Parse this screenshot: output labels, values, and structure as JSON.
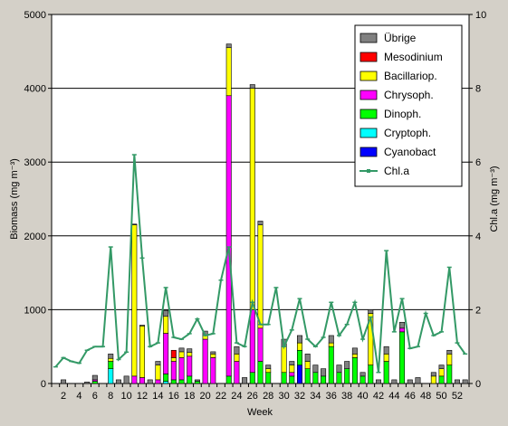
{
  "chart_data": {
    "type": "bar",
    "subtype": "stacked-bar-with-line",
    "xlabel": "Week",
    "ylabel_left": "Biomass (mg m⁻³)",
    "ylabel_right": "Chl.a (mg m⁻³)",
    "ylim_left": [
      0,
      5000
    ],
    "ylim_right": [
      0,
      10
    ],
    "yticks_left": [
      "0",
      "1000",
      "2000",
      "3000",
      "4000",
      "5000"
    ],
    "yticks_right": [
      "0",
      "2",
      "4",
      "6",
      "8",
      "10"
    ],
    "xticks": [
      "2",
      "4",
      "6",
      "8",
      "10",
      "12",
      "14",
      "16",
      "18",
      "20",
      "22",
      "24",
      "26",
      "28",
      "30",
      "32",
      "34",
      "36",
      "38",
      "40",
      "42",
      "44",
      "46",
      "48",
      "50",
      "52"
    ],
    "x_range": [
      1,
      53
    ],
    "grid": "horizontal",
    "legend_position": "top-right",
    "colors": {
      "Übrige": "#808080",
      "Mesodinium": "#ff0000",
      "Bacillariop.": "#ffff00",
      "Chrysoph.": "#ff00ff",
      "Dinoph.": "#00ff00",
      "Cryptoph.": "#00ffff",
      "Cyanobact": "#0000ff",
      "Chl.a": "#339966",
      "background": "#ffffff",
      "frame": "#d4d0c8"
    },
    "legend": [
      "Übrige",
      "Mesodinium",
      "Bacillariop.",
      "Chrysoph.",
      "Dinoph.",
      "Cryptoph.",
      "Cyanobact",
      "Chl.a"
    ],
    "stack_order": [
      "Cyanobact",
      "Cryptoph.",
      "Dinoph.",
      "Chrysoph.",
      "Bacillariop.",
      "Mesodinium",
      "Übrige"
    ],
    "bars": [
      {
        "x": 2,
        "Übrige": 50
      },
      {
        "x": 5,
        "Übrige": 20
      },
      {
        "x": 6,
        "Übrige": 60,
        "Dinoph.": 30,
        "Chrysoph.": 20
      },
      {
        "x": 8,
        "Cryptoph.": 200,
        "Dinoph.": 100,
        "Bacillariop.": 40,
        "Übrige": 60
      },
      {
        "x": 9,
        "Übrige": 50
      },
      {
        "x": 10,
        "Übrige": 100
      },
      {
        "x": 11,
        "Chrysoph.": 100,
        "Bacillariop.": 2050,
        "Übrige": 10
      },
      {
        "x": 12,
        "Chrysoph.": 80,
        "Bacillariop.": 700,
        "Übrige": 10
      },
      {
        "x": 13,
        "Übrige": 50
      },
      {
        "x": 14,
        "Chrysoph.": 50,
        "Bacillariop.": 200,
        "Übrige": 50
      },
      {
        "x": 15,
        "Cryptoph.": 30,
        "Dinoph.": 100,
        "Chrysoph.": 550,
        "Bacillariop.": 230,
        "Übrige": 80
      },
      {
        "x": 16,
        "Dinoph.": 50,
        "Chrysoph.": 250,
        "Bacillariop.": 50,
        "Mesodinium": 100
      },
      {
        "x": 17,
        "Dinoph.": 50,
        "Chrysoph.": 300,
        "Bacillariop.": 80,
        "Übrige": 50
      },
      {
        "x": 18,
        "Dinoph.": 100,
        "Chrysoph.": 270,
        "Bacillariop.": 50,
        "Übrige": 50
      },
      {
        "x": 19,
        "Dinoph.": 30,
        "Übrige": 20
      },
      {
        "x": 20,
        "Chrysoph.": 600,
        "Bacillariop.": 50,
        "Übrige": 60
      },
      {
        "x": 21,
        "Chrysoph.": 350,
        "Bacillariop.": 50,
        "Übrige": 30
      },
      {
        "x": 23,
        "Dinoph.": 100,
        "Chrysoph.": 3800,
        "Bacillariop.": 650,
        "Übrige": 50
      },
      {
        "x": 24,
        "Chrysoph.": 300,
        "Bacillariop.": 100,
        "Übrige": 100
      },
      {
        "x": 25,
        "Übrige": 80
      },
      {
        "x": 26,
        "Dinoph.": 150,
        "Chrysoph.": 850,
        "Bacillariop.": 3000,
        "Übrige": 50
      },
      {
        "x": 27,
        "Dinoph.": 300,
        "Chrysoph.": 450,
        "Bacillariop.": 1400,
        "Übrige": 50
      },
      {
        "x": 28,
        "Dinoph.": 150,
        "Bacillariop.": 50,
        "Übrige": 50
      },
      {
        "x": 30,
        "Dinoph.": 150,
        "Bacillariop.": 350,
        "Übrige": 100
      },
      {
        "x": 31,
        "Dinoph.": 100,
        "Chrysoph.": 50,
        "Bacillariop.": 100,
        "Übrige": 50
      },
      {
        "x": 32,
        "Cyanobact": 250,
        "Dinoph.": 200,
        "Bacillariop.": 100,
        "Übrige": 100
      },
      {
        "x": 33,
        "Dinoph.": 200,
        "Bacillariop.": 100,
        "Übrige": 100
      },
      {
        "x": 34,
        "Dinoph.": 150,
        "Übrige": 100
      },
      {
        "x": 35,
        "Dinoph.": 100,
        "Übrige": 100
      },
      {
        "x": 36,
        "Dinoph.": 500,
        "Bacillariop.": 50,
        "Übrige": 100
      },
      {
        "x": 37,
        "Dinoph.": 150,
        "Übrige": 100
      },
      {
        "x": 38,
        "Dinoph.": 200,
        "Übrige": 100
      },
      {
        "x": 39,
        "Dinoph.": 350,
        "Bacillariop.": 50,
        "Übrige": 80
      },
      {
        "x": 40,
        "Dinoph.": 100,
        "Übrige": 50
      },
      {
        "x": 41,
        "Dinoph.": 250,
        "Bacillariop.": 700,
        "Übrige": 50
      },
      {
        "x": 42,
        "Übrige": 50
      },
      {
        "x": 43,
        "Dinoph.": 300,
        "Bacillariop.": 100,
        "Übrige": 100
      },
      {
        "x": 44,
        "Übrige": 50
      },
      {
        "x": 45,
        "Dinoph.": 700,
        "Chrysoph.": 50,
        "Übrige": 80
      },
      {
        "x": 46,
        "Übrige": 50
      },
      {
        "x": 47,
        "Übrige": 80
      },
      {
        "x": 49,
        "Bacillariop.": 100,
        "Übrige": 50
      },
      {
        "x": 50,
        "Dinoph.": 100,
        "Bacillariop.": 100,
        "Übrige": 50
      },
      {
        "x": 51,
        "Dinoph.": 250,
        "Bacillariop.": 150,
        "Übrige": 50
      },
      {
        "x": 52,
        "Übrige": 50
      },
      {
        "x": 53,
        "Übrige": 50
      }
    ],
    "line": {
      "name": "Chl.a",
      "x": [
        1,
        2,
        3,
        4,
        5,
        6,
        7,
        8,
        9,
        10,
        11,
        12,
        13,
        14,
        15,
        16,
        17,
        18,
        19,
        20,
        21,
        22,
        23,
        24,
        25,
        26,
        27,
        28,
        29,
        30,
        31,
        32,
        33,
        34,
        35,
        36,
        37,
        38,
        39,
        40,
        41,
        42,
        43,
        44,
        45,
        46,
        47,
        48,
        49,
        50,
        51,
        52,
        53
      ],
      "values": [
        0.45,
        0.7,
        0.6,
        0.55,
        0.9,
        1.0,
        1.0,
        3.7,
        0.65,
        0.85,
        6.2,
        3.4,
        1.0,
        1.1,
        2.6,
        1.25,
        1.2,
        1.35,
        1.75,
        1.3,
        1.35,
        2.8,
        3.7,
        1.1,
        1.0,
        2.2,
        1.6,
        1.6,
        2.6,
        1.0,
        1.45,
        2.3,
        1.2,
        1.0,
        1.25,
        2.2,
        1.3,
        1.6,
        2.2,
        1.2,
        1.8,
        0.3,
        3.6,
        1.4,
        2.3,
        0.95,
        1.0,
        1.9,
        1.3,
        1.4,
        3.15,
        1.1,
        0.8
      ]
    }
  }
}
